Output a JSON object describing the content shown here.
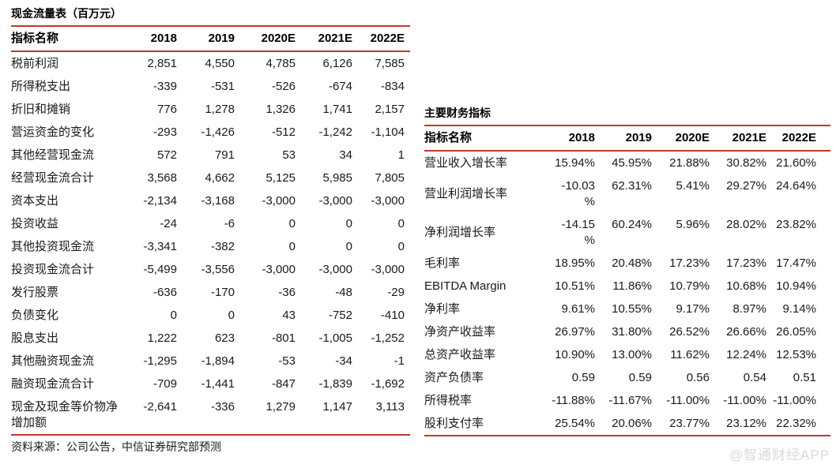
{
  "accent_color": "#c0392b",
  "watermark": "@智通财经APP",
  "left_table": {
    "title": "现金流量表（百万元）",
    "headers": [
      "指标名称",
      "2018",
      "2019",
      "2020E",
      "2021E",
      "2022E"
    ],
    "rows": [
      {
        "label": "税前利润",
        "values": [
          "2,851",
          "4,550",
          "4,785",
          "6,126",
          "7,585"
        ]
      },
      {
        "label": "所得税支出",
        "values": [
          "-339",
          "-531",
          "-526",
          "-674",
          "-834"
        ]
      },
      {
        "label": "折旧和摊销",
        "values": [
          "776",
          "1,278",
          "1,326",
          "1,741",
          "2,157"
        ]
      },
      {
        "label": "营运资金的变化",
        "values": [
          "-293",
          "-1,426",
          "-512",
          "-1,242",
          "-1,104"
        ]
      },
      {
        "label": "其他经营现金流",
        "values": [
          "572",
          "791",
          "53",
          "34",
          "1"
        ]
      },
      {
        "label": "经营现金流合计",
        "values": [
          "3,568",
          "4,662",
          "5,125",
          "5,985",
          "7,805"
        ]
      },
      {
        "label": "资本支出",
        "values": [
          "-2,134",
          "-3,168",
          "-3,000",
          "-3,000",
          "-3,000"
        ]
      },
      {
        "label": "投资收益",
        "values": [
          "-24",
          "-6",
          "0",
          "0",
          "0"
        ]
      },
      {
        "label": "其他投资现金流",
        "values": [
          "-3,341",
          "-382",
          "0",
          "0",
          "0"
        ]
      },
      {
        "label": "投资现金流合计",
        "values": [
          "-5,499",
          "-3,556",
          "-3,000",
          "-3,000",
          "-3,000"
        ]
      },
      {
        "label": "发行股票",
        "values": [
          "-636",
          "-170",
          "-36",
          "-48",
          "-29"
        ]
      },
      {
        "label": "负债变化",
        "values": [
          "0",
          "0",
          "43",
          "-752",
          "-410"
        ]
      },
      {
        "label": "股息支出",
        "values": [
          "1,222",
          "623",
          "-801",
          "-1,005",
          "-1,252"
        ]
      },
      {
        "label": "其他融资现金流",
        "values": [
          "-1,295",
          "-1,894",
          "-53",
          "-34",
          "-1"
        ]
      },
      {
        "label": "融资现金流合计",
        "values": [
          "-709",
          "-1,441",
          "-847",
          "-1,839",
          "-1,692"
        ]
      },
      {
        "label": "现金及现金等价物净增加额",
        "values": [
          "-2,641",
          "-336",
          "1,279",
          "1,147",
          "3,113"
        ]
      }
    ],
    "source_note": "资料来源：公司公告，中信证券研究部预测"
  },
  "right_table": {
    "title": "主要财务指标",
    "headers": [
      "指标名称",
      "2018",
      "2019",
      "2020E",
      "2021E",
      "2022E"
    ],
    "rows": [
      {
        "label": "营业收入增长率",
        "values": [
          "15.94%",
          "45.95%",
          "21.88%",
          "30.82%",
          "21.60%"
        ]
      },
      {
        "label": "营业利润增长率",
        "values": [
          "-10.03\n%",
          "62.31%",
          "5.41%",
          "29.27%",
          "24.64%"
        ]
      },
      {
        "label": "净利润增长率",
        "values": [
          "-14.15\n%",
          "60.24%",
          "5.96%",
          "28.02%",
          "23.82%"
        ]
      },
      {
        "label": "毛利率",
        "values": [
          "18.95%",
          "20.48%",
          "17.23%",
          "17.23%",
          "17.47%"
        ]
      },
      {
        "label": "EBITDA Margin",
        "values": [
          "10.51%",
          "11.86%",
          "10.79%",
          "10.68%",
          "10.94%"
        ]
      },
      {
        "label": "净利率",
        "values": [
          "9.61%",
          "10.55%",
          "9.17%",
          "8.97%",
          "9.14%"
        ]
      },
      {
        "label": "净资产收益率",
        "values": [
          "26.97%",
          "31.80%",
          "26.52%",
          "26.66%",
          "26.05%"
        ]
      },
      {
        "label": "总资产收益率",
        "values": [
          "10.90%",
          "13.00%",
          "11.62%",
          "12.24%",
          "12.53%"
        ]
      },
      {
        "label": "资产负债率",
        "values": [
          "0.59",
          "0.59",
          "0.56",
          "0.54",
          "0.51"
        ]
      },
      {
        "label": "所得税率",
        "values": [
          "-11.88%",
          "-11.67%",
          "-11.00%",
          "-11.00%",
          "-11.00%"
        ]
      },
      {
        "label": "股利支付率",
        "values": [
          "25.54%",
          "20.06%",
          "23.77%",
          "23.12%",
          "22.32%"
        ]
      }
    ]
  }
}
